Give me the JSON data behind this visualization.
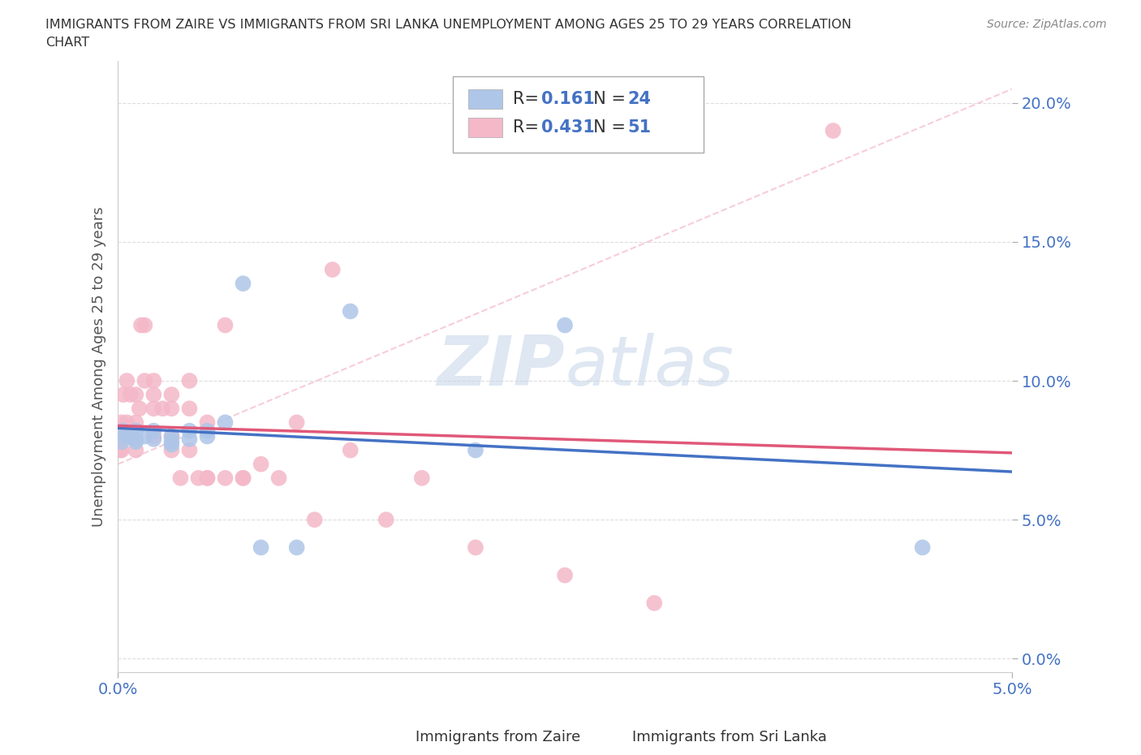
{
  "title_line1": "IMMIGRANTS FROM ZAIRE VS IMMIGRANTS FROM SRI LANKA UNEMPLOYMENT AMONG AGES 25 TO 29 YEARS CORRELATION",
  "title_line2": "CHART",
  "source": "Source: ZipAtlas.com",
  "ylabel": "Unemployment Among Ages 25 to 29 years",
  "xlabel_zaire": "Immigrants from Zaire",
  "xlabel_srilanka": "Immigrants from Sri Lanka",
  "xlim": [
    0.0,
    0.05
  ],
  "ylim": [
    -0.005,
    0.215
  ],
  "yticks": [
    0.0,
    0.05,
    0.1,
    0.15,
    0.2
  ],
  "ytick_labels": [
    "0.0%",
    "5.0%",
    "10.0%",
    "15.0%",
    "20.0%"
  ],
  "xtick_positions": [
    0.0,
    0.05
  ],
  "xtick_labels": [
    "0.0%",
    "5.0%"
  ],
  "r_zaire": 0.161,
  "n_zaire": 24,
  "r_srilanka": 0.431,
  "n_srilanka": 51,
  "color_zaire": "#aec6e8",
  "color_srilanka": "#f4b8c8",
  "line_color_zaire": "#4472c4",
  "line_color_srilanka": "#e05878",
  "text_color": "#4472c4",
  "watermark_color": "#c8d8ea",
  "zaire_x": [
    0.0002,
    0.0003,
    0.0005,
    0.001,
    0.001,
    0.001,
    0.0015,
    0.002,
    0.002,
    0.003,
    0.003,
    0.003,
    0.004,
    0.004,
    0.005,
    0.005,
    0.006,
    0.007,
    0.008,
    0.01,
    0.013,
    0.02,
    0.025,
    0.045
  ],
  "zaire_y": [
    0.078,
    0.082,
    0.08,
    0.082,
    0.079,
    0.078,
    0.08,
    0.082,
    0.079,
    0.08,
    0.078,
    0.077,
    0.082,
    0.079,
    0.082,
    0.08,
    0.085,
    0.135,
    0.04,
    0.04,
    0.125,
    0.075,
    0.12,
    0.04
  ],
  "srilanka_x": [
    0.0001,
    0.0001,
    0.0002,
    0.0002,
    0.0003,
    0.0004,
    0.0005,
    0.0005,
    0.0006,
    0.0007,
    0.0008,
    0.001,
    0.001,
    0.001,
    0.0012,
    0.0013,
    0.0015,
    0.0015,
    0.002,
    0.002,
    0.002,
    0.002,
    0.0025,
    0.003,
    0.003,
    0.003,
    0.003,
    0.0035,
    0.004,
    0.004,
    0.004,
    0.0045,
    0.005,
    0.005,
    0.005,
    0.006,
    0.006,
    0.007,
    0.007,
    0.008,
    0.009,
    0.01,
    0.011,
    0.012,
    0.013,
    0.015,
    0.017,
    0.02,
    0.025,
    0.03,
    0.04
  ],
  "srilanka_y": [
    0.08,
    0.075,
    0.085,
    0.075,
    0.095,
    0.08,
    0.085,
    0.1,
    0.08,
    0.095,
    0.08,
    0.095,
    0.085,
    0.075,
    0.09,
    0.12,
    0.1,
    0.12,
    0.09,
    0.095,
    0.1,
    0.08,
    0.09,
    0.09,
    0.08,
    0.095,
    0.075,
    0.065,
    0.09,
    0.1,
    0.075,
    0.065,
    0.085,
    0.065,
    0.065,
    0.065,
    0.12,
    0.065,
    0.065,
    0.07,
    0.065,
    0.085,
    0.05,
    0.14,
    0.075,
    0.05,
    0.065,
    0.04,
    0.03,
    0.02,
    0.19
  ]
}
